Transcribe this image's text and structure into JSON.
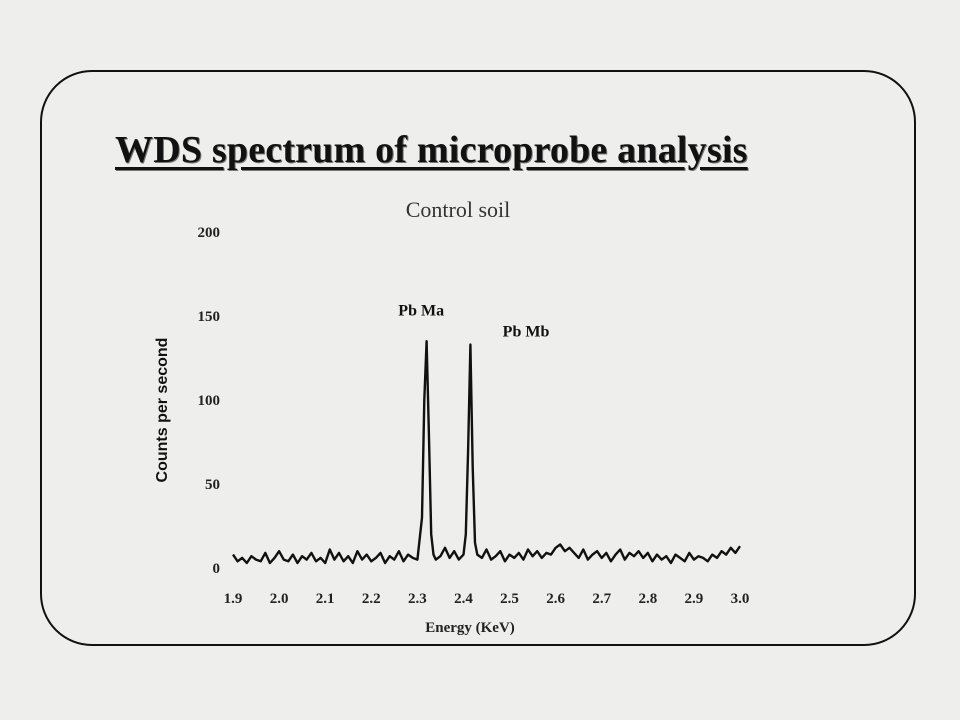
{
  "slide": {
    "title": "WDS spectrum of microprobe  analysis"
  },
  "chart_data": {
    "type": "line",
    "subtitle": "Control soil",
    "xlabel": "Energy (KeV)",
    "ylabel": "Counts per second",
    "xlim": [
      1.9,
      3.0
    ],
    "ylim": [
      0,
      200
    ],
    "x_ticks": [
      "1.9",
      "2.0",
      "2.1",
      "2.2",
      "2.3",
      "2.4",
      "2.5",
      "2.6",
      "2.7",
      "2.8",
      "2.9",
      "3.0"
    ],
    "y_ticks": [
      "0",
      "50",
      "100",
      "150",
      "200"
    ],
    "grid": false,
    "legend": "none",
    "line_color": "#111111",
    "series": [
      {
        "x": [
          1.9,
          1.91,
          1.92,
          1.93,
          1.94,
          1.95,
          1.96,
          1.97,
          1.98,
          1.99,
          2.0,
          2.01,
          2.02,
          2.03,
          2.04,
          2.05,
          2.06,
          2.07,
          2.08,
          2.09,
          2.1,
          2.11,
          2.12,
          2.13,
          2.14,
          2.15,
          2.16,
          2.17,
          2.18,
          2.19,
          2.2,
          2.21,
          2.22,
          2.23,
          2.24,
          2.25,
          2.26,
          2.27,
          2.28,
          2.29,
          2.3,
          2.31,
          2.315,
          2.32,
          2.325,
          2.33,
          2.335,
          2.34,
          2.35,
          2.36,
          2.37,
          2.38,
          2.39,
          2.4,
          2.405,
          2.41,
          2.415,
          2.42,
          2.425,
          2.43,
          2.44,
          2.45,
          2.46,
          2.47,
          2.48,
          2.49,
          2.5,
          2.51,
          2.52,
          2.53,
          2.54,
          2.55,
          2.56,
          2.57,
          2.58,
          2.59,
          2.6,
          2.61,
          2.62,
          2.63,
          2.64,
          2.65,
          2.66,
          2.67,
          2.68,
          2.69,
          2.7,
          2.71,
          2.72,
          2.73,
          2.74,
          2.75,
          2.76,
          2.77,
          2.78,
          2.79,
          2.8,
          2.81,
          2.82,
          2.83,
          2.84,
          2.85,
          2.86,
          2.87,
          2.88,
          2.89,
          2.9,
          2.91,
          2.92,
          2.93,
          2.94,
          2.95,
          2.96,
          2.97,
          2.98,
          2.99,
          3.0
        ],
        "values": [
          8,
          4,
          6,
          3,
          7,
          5,
          4,
          9,
          3,
          6,
          10,
          5,
          4,
          8,
          3,
          7,
          5,
          9,
          4,
          6,
          3,
          11,
          5,
          9,
          4,
          7,
          3,
          10,
          5,
          8,
          4,
          6,
          9,
          3,
          7,
          5,
          10,
          4,
          8,
          6,
          5,
          30,
          100,
          135,
          80,
          20,
          8,
          5,
          7,
          12,
          6,
          10,
          5,
          8,
          20,
          70,
          133,
          60,
          15,
          8,
          6,
          11,
          5,
          7,
          10,
          4,
          8,
          6,
          9,
          5,
          11,
          7,
          10,
          6,
          9,
          8,
          12,
          14,
          10,
          12,
          9,
          6,
          11,
          5,
          8,
          10,
          6,
          9,
          4,
          8,
          11,
          5,
          9,
          7,
          10,
          6,
          9,
          4,
          8,
          5,
          7,
          3,
          8,
          6,
          4,
          9,
          5,
          7,
          6,
          4,
          8,
          6,
          10,
          8,
          12,
          9,
          13
        ]
      }
    ],
    "annotations": [
      {
        "text": "Pb Ma",
        "x": 2.33,
        "y": 155
      },
      {
        "text": "Pb Mb",
        "x": 2.42,
        "y": 133
      }
    ]
  }
}
